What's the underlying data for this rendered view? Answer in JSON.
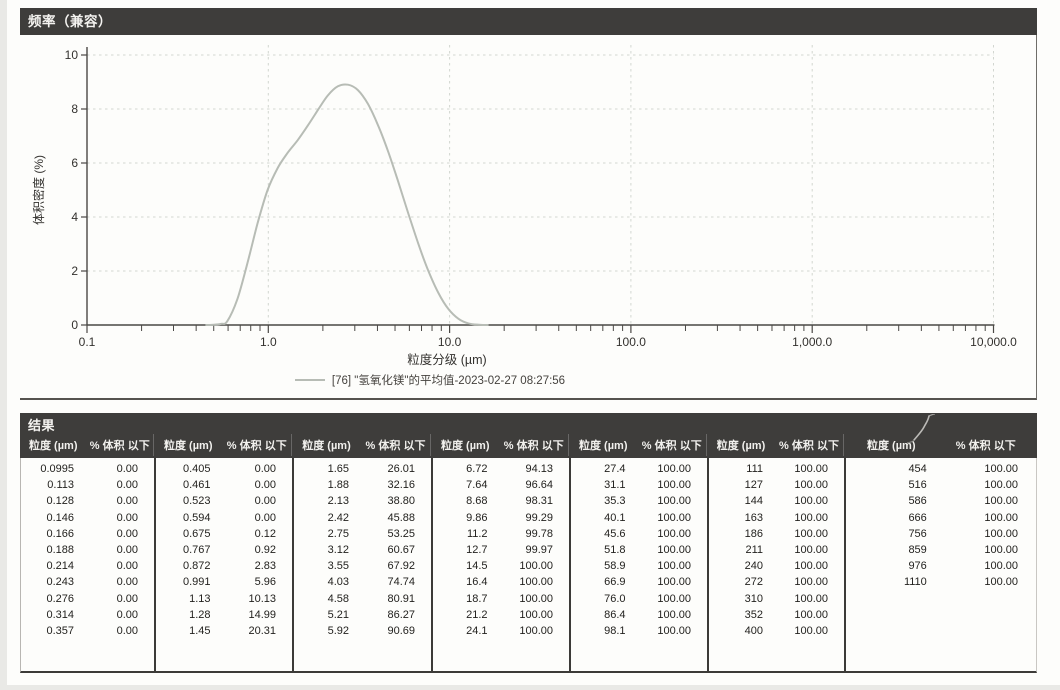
{
  "chart_panel": {
    "title": "频率（兼容）"
  },
  "chart_data": {
    "type": "line",
    "title": "频率（兼容）",
    "xlabel": "粒度分级 (µm)",
    "ylabel": "体积密度 (%)",
    "xscale": "log",
    "xlim": [
      0.1,
      10000
    ],
    "ylim": [
      0,
      10
    ],
    "yticks": [
      0,
      2,
      4,
      6,
      8,
      10
    ],
    "xtick_values": [
      0.1,
      1,
      10,
      100,
      1000,
      10000
    ],
    "xtick_labels": [
      "0.1",
      "1.0",
      "10.0",
      "100.0",
      "1,000.0",
      "10,000.0"
    ],
    "grid": true,
    "legend_position": "bottom-center",
    "curve_color": "#b7bcb5",
    "series": [
      {
        "name": "[76] \"氢氧化镁\"的平均值-2023-02-27 08:27:56",
        "points": [
          [
            0.45,
            0
          ],
          [
            0.5,
            0.01
          ],
          [
            0.55,
            0.04
          ],
          [
            0.594,
            0.14
          ],
          [
            0.675,
            0.96
          ],
          [
            0.767,
            2.29
          ],
          [
            0.872,
            3.76
          ],
          [
            0.991,
            5.0
          ],
          [
            1.13,
            5.83
          ],
          [
            1.28,
            6.38
          ],
          [
            1.45,
            6.84
          ],
          [
            1.65,
            7.38
          ],
          [
            1.88,
            7.97
          ],
          [
            2.13,
            8.5
          ],
          [
            2.42,
            8.84
          ],
          [
            2.75,
            8.9
          ],
          [
            3.12,
            8.7
          ],
          [
            3.55,
            8.18
          ],
          [
            4.03,
            7.4
          ],
          [
            4.58,
            6.43
          ],
          [
            5.21,
            5.3
          ],
          [
            5.92,
            4.13
          ],
          [
            6.72,
            3.01
          ],
          [
            7.64,
            2.0
          ],
          [
            8.68,
            1.18
          ],
          [
            9.86,
            0.59
          ],
          [
            11.2,
            0.23
          ],
          [
            12.7,
            0.06
          ],
          [
            14.5,
            0.01
          ],
          [
            16.4,
            0
          ]
        ]
      }
    ]
  },
  "results": {
    "title": "结果",
    "col_headers": {
      "size": "粒度 (µm)",
      "pct": "% 体积 以下"
    },
    "groups": [
      [
        [
          "0.0995",
          "0.00"
        ],
        [
          "0.113",
          "0.00"
        ],
        [
          "0.128",
          "0.00"
        ],
        [
          "0.146",
          "0.00"
        ],
        [
          "0.166",
          "0.00"
        ],
        [
          "0.188",
          "0.00"
        ],
        [
          "0.214",
          "0.00"
        ],
        [
          "0.243",
          "0.00"
        ],
        [
          "0.276",
          "0.00"
        ],
        [
          "0.314",
          "0.00"
        ],
        [
          "0.357",
          "0.00"
        ]
      ],
      [
        [
          "0.405",
          "0.00"
        ],
        [
          "0.461",
          "0.00"
        ],
        [
          "0.523",
          "0.00"
        ],
        [
          "0.594",
          "0.00"
        ],
        [
          "0.675",
          "0.12"
        ],
        [
          "0.767",
          "0.92"
        ],
        [
          "0.872",
          "2.83"
        ],
        [
          "0.991",
          "5.96"
        ],
        [
          "1.13",
          "10.13"
        ],
        [
          "1.28",
          "14.99"
        ],
        [
          "1.45",
          "20.31"
        ]
      ],
      [
        [
          "1.65",
          "26.01"
        ],
        [
          "1.88",
          "32.16"
        ],
        [
          "2.13",
          "38.80"
        ],
        [
          "2.42",
          "45.88"
        ],
        [
          "2.75",
          "53.25"
        ],
        [
          "3.12",
          "60.67"
        ],
        [
          "3.55",
          "67.92"
        ],
        [
          "4.03",
          "74.74"
        ],
        [
          "4.58",
          "80.91"
        ],
        [
          "5.21",
          "86.27"
        ],
        [
          "5.92",
          "90.69"
        ]
      ],
      [
        [
          "6.72",
          "94.13"
        ],
        [
          "7.64",
          "96.64"
        ],
        [
          "8.68",
          "98.31"
        ],
        [
          "9.86",
          "99.29"
        ],
        [
          "11.2",
          "99.78"
        ],
        [
          "12.7",
          "99.97"
        ],
        [
          "14.5",
          "100.00"
        ],
        [
          "16.4",
          "100.00"
        ],
        [
          "18.7",
          "100.00"
        ],
        [
          "21.2",
          "100.00"
        ],
        [
          "24.1",
          "100.00"
        ]
      ],
      [
        [
          "27.4",
          "100.00"
        ],
        [
          "31.1",
          "100.00"
        ],
        [
          "35.3",
          "100.00"
        ],
        [
          "40.1",
          "100.00"
        ],
        [
          "45.6",
          "100.00"
        ],
        [
          "51.8",
          "100.00"
        ],
        [
          "58.9",
          "100.00"
        ],
        [
          "66.9",
          "100.00"
        ],
        [
          "76.0",
          "100.00"
        ],
        [
          "86.4",
          "100.00"
        ],
        [
          "98.1",
          "100.00"
        ]
      ],
      [
        [
          "111",
          "100.00"
        ],
        [
          "127",
          "100.00"
        ],
        [
          "144",
          "100.00"
        ],
        [
          "163",
          "100.00"
        ],
        [
          "186",
          "100.00"
        ],
        [
          "211",
          "100.00"
        ],
        [
          "240",
          "100.00"
        ],
        [
          "272",
          "100.00"
        ],
        [
          "310",
          "100.00"
        ],
        [
          "352",
          "100.00"
        ],
        [
          "400",
          "100.00"
        ]
      ],
      [
        [
          "454",
          "100.00"
        ],
        [
          "516",
          "100.00"
        ],
        [
          "586",
          "100.00"
        ],
        [
          "666",
          "100.00"
        ],
        [
          "756",
          "100.00"
        ],
        [
          "859",
          "100.00"
        ],
        [
          "976",
          "100.00"
        ],
        [
          "1110",
          "100.00"
        ]
      ]
    ]
  }
}
